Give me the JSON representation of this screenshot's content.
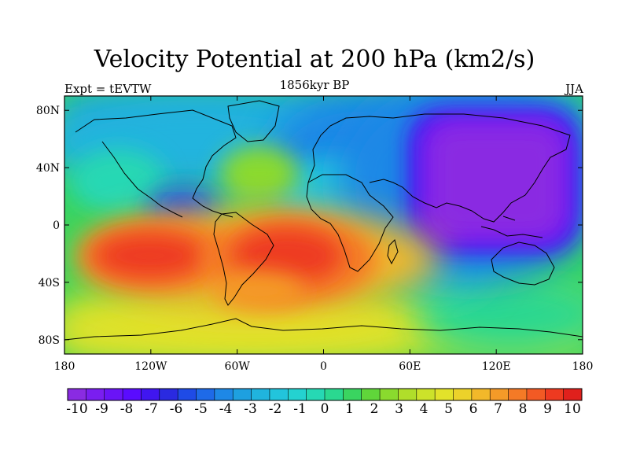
{
  "header": {
    "title": "Velocity Potential at 200 hPa (km2/s)",
    "experiment": "Expt = tEVTW",
    "period": "1856kyr BP",
    "season": "JJA"
  },
  "map": {
    "projection": "cylindrical-equidistant",
    "lon_range": [
      -180,
      180
    ],
    "lat_range": [
      -90,
      90
    ],
    "y_ticks": [
      {
        "lat": 80,
        "label": "80N"
      },
      {
        "lat": 40,
        "label": "40N"
      },
      {
        "lat": 0,
        "label": "0"
      },
      {
        "lat": -40,
        "label": "40S"
      },
      {
        "lat": -80,
        "label": "80S"
      }
    ],
    "x_ticks": [
      {
        "lon": -180,
        "label": "180"
      },
      {
        "lon": -120,
        "label": "120W"
      },
      {
        "lon": -60,
        "label": "60W"
      },
      {
        "lon": 0,
        "label": "0"
      },
      {
        "lon": 60,
        "label": "60E"
      },
      {
        "lon": 120,
        "label": "120E"
      },
      {
        "lon": 180,
        "label": "180"
      }
    ],
    "field_centers": [
      {
        "name": "asian-monsoon-minimum",
        "lon": 120,
        "lat": 20,
        "value": -10
      },
      {
        "name": "central-america-minimum",
        "lon": -100,
        "lat": 8,
        "value": -6
      },
      {
        "name": "south-pacific-maximum",
        "lon": -130,
        "lat": -22,
        "value": 9
      },
      {
        "name": "south-atlantic-maximum",
        "lon": -25,
        "lat": -22,
        "value": 9
      }
    ]
  },
  "colorbar": {
    "min": -10,
    "max": 10,
    "step": 0.5,
    "labels": [
      "-10",
      "-9",
      "-8",
      "-7",
      "-6",
      "-5",
      "-4",
      "-3",
      "-2",
      "-1",
      "0",
      "1",
      "2",
      "3",
      "4",
      "5",
      "6",
      "7",
      "8",
      "9",
      "10"
    ],
    "colors": [
      "#8a2be2",
      "#7a1ef0",
      "#6a14f6",
      "#5a0cff",
      "#4016f0",
      "#2a2ae0",
      "#1f4be6",
      "#1e6ae8",
      "#1e88e6",
      "#1ea0e0",
      "#20b4de",
      "#22c4dc",
      "#24d2d0",
      "#26d8b4",
      "#2ad890",
      "#3ad460",
      "#60d63a",
      "#8ada2e",
      "#b0de2a",
      "#cce22a",
      "#e2e22a",
      "#ecd22a",
      "#f2b82a",
      "#f49a28",
      "#f47a26",
      "#f25a24",
      "#ee3a20",
      "#e0201c"
    ]
  }
}
